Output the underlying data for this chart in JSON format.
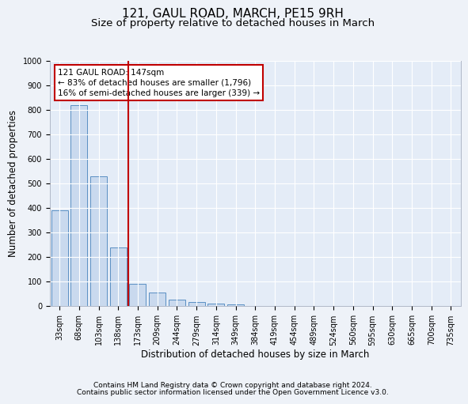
{
  "title": "121, GAUL ROAD, MARCH, PE15 9RH",
  "subtitle": "Size of property relative to detached houses in March",
  "xlabel": "Distribution of detached houses by size in March",
  "ylabel": "Number of detached properties",
  "footer_line1": "Contains HM Land Registry data © Crown copyright and database right 2024.",
  "footer_line2": "Contains public sector information licensed under the Open Government Licence v3.0.",
  "categories": [
    "33sqm",
    "68sqm",
    "103sqm",
    "138sqm",
    "173sqm",
    "209sqm",
    "244sqm",
    "279sqm",
    "314sqm",
    "349sqm",
    "384sqm",
    "419sqm",
    "454sqm",
    "489sqm",
    "524sqm",
    "560sqm",
    "595sqm",
    "630sqm",
    "665sqm",
    "700sqm",
    "735sqm"
  ],
  "values": [
    390,
    820,
    530,
    240,
    90,
    55,
    25,
    15,
    10,
    5,
    0,
    0,
    0,
    0,
    0,
    0,
    0,
    0,
    0,
    0,
    0
  ],
  "bar_color": "#c9d9ee",
  "bar_edge_color": "#5a8fc3",
  "vline_x": 3.5,
  "vline_color": "#c00000",
  "annotation_line1": "121 GAUL ROAD: 147sqm",
  "annotation_line2": "← 83% of detached houses are smaller (1,796)",
  "annotation_line3": "16% of semi-detached houses are larger (339) →",
  "ylim": [
    0,
    1000
  ],
  "yticks": [
    0,
    100,
    200,
    300,
    400,
    500,
    600,
    700,
    800,
    900,
    1000
  ],
  "background_color": "#eef2f8",
  "plot_background": "#e4ecf7",
  "grid_color": "#ffffff",
  "title_fontsize": 11,
  "subtitle_fontsize": 9.5,
  "axis_label_fontsize": 8.5,
  "tick_fontsize": 7,
  "annotation_fontsize": 7.5,
  "footer_fontsize": 6.5
}
